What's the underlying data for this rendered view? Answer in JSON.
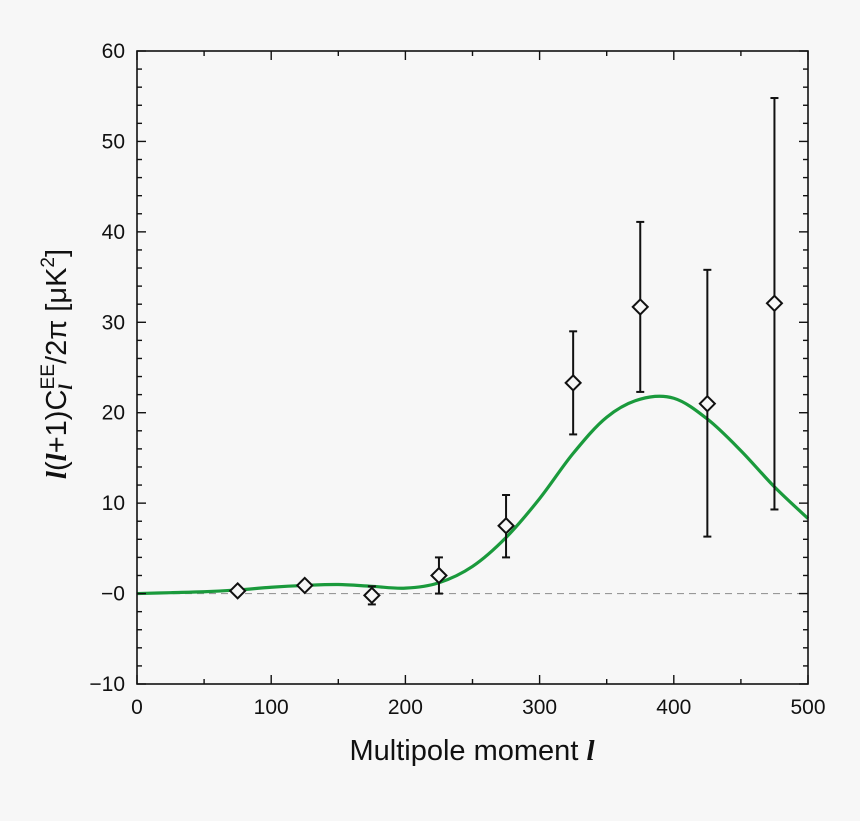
{
  "chart_data": {
    "type": "scatter",
    "xlabel": "Multipole moment",
    "xlabel_symbol": "l",
    "ylabel": {
      "l1": "l",
      "paren_open": "(",
      "l2": "l",
      "mid": "+1)C",
      "sub": "l",
      "sup": "EE",
      "frac": "/2π [μK",
      "sup2": "2",
      "close": "]"
    },
    "xlim": [
      0,
      500
    ],
    "ylim": [
      -10,
      60
    ],
    "x_ticks": [
      0,
      100,
      200,
      300,
      400,
      500
    ],
    "x_tick_labels": [
      "0",
      "100",
      "200",
      "300",
      "400",
      "500"
    ],
    "y_ticks": [
      -10,
      0,
      10,
      20,
      30,
      40,
      50,
      60
    ],
    "y_tick_labels": [
      "−10",
      "−0",
      "10",
      "20",
      "30",
      "40",
      "50",
      "60"
    ],
    "zero_line": true,
    "points": [
      {
        "x": 75,
        "y": 0.3,
        "lo": 0.1,
        "hi": 0.5
      },
      {
        "x": 125,
        "y": 0.9,
        "lo": 0.5,
        "hi": 1.3
      },
      {
        "x": 175,
        "y": -0.2,
        "lo": -1.2,
        "hi": 0.8
      },
      {
        "x": 225,
        "y": 2.0,
        "lo": 0.0,
        "hi": 4.0
      },
      {
        "x": 275,
        "y": 7.5,
        "lo": 4.0,
        "hi": 10.9
      },
      {
        "x": 325,
        "y": 23.3,
        "lo": 17.6,
        "hi": 29.0
      },
      {
        "x": 375,
        "y": 31.7,
        "lo": 22.3,
        "hi": 41.1
      },
      {
        "x": 425,
        "y": 21.0,
        "lo": 6.3,
        "hi": 35.8
      },
      {
        "x": 475,
        "y": 32.1,
        "lo": 9.3,
        "hi": 54.8
      }
    ],
    "model_curve": {
      "color": "#1a9a3c",
      "x": [
        0,
        25,
        50,
        75,
        100,
        125,
        150,
        175,
        200,
        225,
        250,
        275,
        300,
        325,
        350,
        375,
        400,
        425,
        450,
        475,
        500
      ],
      "y": [
        0.0,
        0.1,
        0.2,
        0.4,
        0.7,
        0.9,
        1.0,
        0.8,
        0.6,
        1.2,
        3.0,
        6.2,
        10.5,
        15.5,
        19.5,
        21.5,
        21.6,
        19.3,
        15.8,
        11.8,
        8.3
      ]
    },
    "marker_color": "#111111",
    "zero_line_color": "#999999"
  }
}
